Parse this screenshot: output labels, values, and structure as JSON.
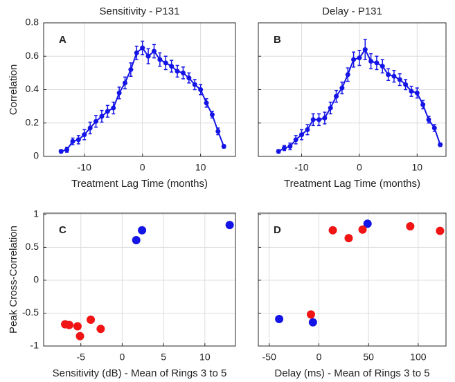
{
  "chart_data": [
    {
      "type": "line",
      "title": "Sensitivity - P131",
      "xlabel": "Treatment Lag Time (months)",
      "ylabel": "Correlation",
      "annotation": "A",
      "x": [
        -14,
        -13,
        -12,
        -11,
        -10,
        -9,
        -8,
        -7,
        -6,
        -5,
        -4,
        -3,
        -2,
        -1,
        0,
        1,
        2,
        3,
        4,
        5,
        6,
        7,
        8,
        9,
        10,
        11,
        12,
        13,
        14
      ],
      "values": [
        0.03,
        0.04,
        0.09,
        0.1,
        0.13,
        0.17,
        0.21,
        0.24,
        0.27,
        0.29,
        0.38,
        0.44,
        0.52,
        0.62,
        0.65,
        0.6,
        0.63,
        0.58,
        0.56,
        0.54,
        0.51,
        0.5,
        0.47,
        0.43,
        0.4,
        0.32,
        0.25,
        0.15,
        0.06
      ],
      "errors": [
        0.01,
        0.015,
        0.02,
        0.025,
        0.03,
        0.035,
        0.035,
        0.035,
        0.035,
        0.035,
        0.035,
        0.035,
        0.04,
        0.04,
        0.04,
        0.045,
        0.04,
        0.04,
        0.04,
        0.035,
        0.035,
        0.035,
        0.03,
        0.03,
        0.03,
        0.025,
        0.02,
        0.02,
        0.01
      ],
      "color": "#1414e6",
      "xlim": [
        -17,
        16
      ],
      "ylim": [
        0,
        0.8
      ],
      "xticks": [
        -10,
        0,
        10
      ],
      "yticks": [
        0,
        0.2,
        0.4,
        0.6,
        0.8
      ],
      "grid": true,
      "show_ytick_labels": true
    },
    {
      "type": "line",
      "title": "Delay - P131",
      "xlabel": "Treatment Lag Time (months)",
      "annotation": "B",
      "x": [
        -14,
        -13,
        -12,
        -11,
        -10,
        -9,
        -8,
        -7,
        -6,
        -5,
        -4,
        -3,
        -2,
        -1,
        0,
        1,
        2,
        3,
        4,
        5,
        6,
        7,
        8,
        9,
        10,
        11,
        12,
        13,
        14
      ],
      "values": [
        0.03,
        0.05,
        0.06,
        0.1,
        0.13,
        0.16,
        0.22,
        0.22,
        0.23,
        0.29,
        0.36,
        0.41,
        0.49,
        0.58,
        0.59,
        0.64,
        0.57,
        0.56,
        0.54,
        0.49,
        0.48,
        0.46,
        0.43,
        0.39,
        0.38,
        0.31,
        0.22,
        0.17,
        0.07
      ],
      "errors": [
        0.01,
        0.015,
        0.02,
        0.025,
        0.03,
        0.03,
        0.035,
        0.035,
        0.035,
        0.035,
        0.035,
        0.035,
        0.04,
        0.045,
        0.045,
        0.06,
        0.045,
        0.04,
        0.04,
        0.035,
        0.035,
        0.035,
        0.03,
        0.03,
        0.03,
        0.025,
        0.02,
        0.02,
        0.01
      ],
      "color": "#1414e6",
      "xlim": [
        -17.5,
        15
      ],
      "ylim": [
        0,
        0.8
      ],
      "xticks": [
        -10,
        0,
        10
      ],
      "yticks": [
        0,
        0.2,
        0.4,
        0.6,
        0.8
      ],
      "grid": true,
      "show_ytick_labels": false
    },
    {
      "type": "scatter",
      "xlabel": "Sensitivity (dB) - Mean of Rings 3 to 5",
      "ylabel": "Peak Cross-Correlation",
      "annotation": "C",
      "series": [
        {
          "color": "#1414e6",
          "x": [
            1.7,
            2.4,
            13
          ],
          "values": [
            0.61,
            0.76,
            0.84
          ]
        },
        {
          "color": "#f01414",
          "x": [
            -6.9,
            -6.4,
            -5.4,
            -5.1,
            -3.8,
            -2.6
          ],
          "values": [
            -0.67,
            -0.68,
            -0.7,
            -0.85,
            -0.6,
            -0.74
          ]
        }
      ],
      "xlim": [
        -9.5,
        13.7
      ],
      "ylim": [
        -1,
        1.02
      ],
      "xticks": [
        -5,
        0,
        5,
        10
      ],
      "yticks": [
        -1,
        -0.5,
        0,
        0.5,
        1
      ],
      "grid": true,
      "show_ytick_labels": true
    },
    {
      "type": "scatter",
      "xlabel": "Delay (ms) - Mean of Rings 3 to 5",
      "annotation": "D",
      "series": [
        {
          "color": "#1414e6",
          "x": [
            -40,
            -6,
            49
          ],
          "values": [
            -0.59,
            -0.64,
            0.86
          ]
        },
        {
          "color": "#f01414",
          "x": [
            -8,
            14,
            30,
            44,
            92,
            122
          ],
          "values": [
            -0.52,
            0.76,
            0.64,
            0.77,
            0.82,
            0.75
          ]
        }
      ],
      "xlim": [
        -61,
        128
      ],
      "ylim": [
        -1,
        1.02
      ],
      "xticks": [
        -50,
        0,
        50,
        100
      ],
      "yticks": [
        -1,
        -0.5,
        0,
        0.5,
        1
      ],
      "grid": true,
      "show_ytick_labels": false
    }
  ]
}
